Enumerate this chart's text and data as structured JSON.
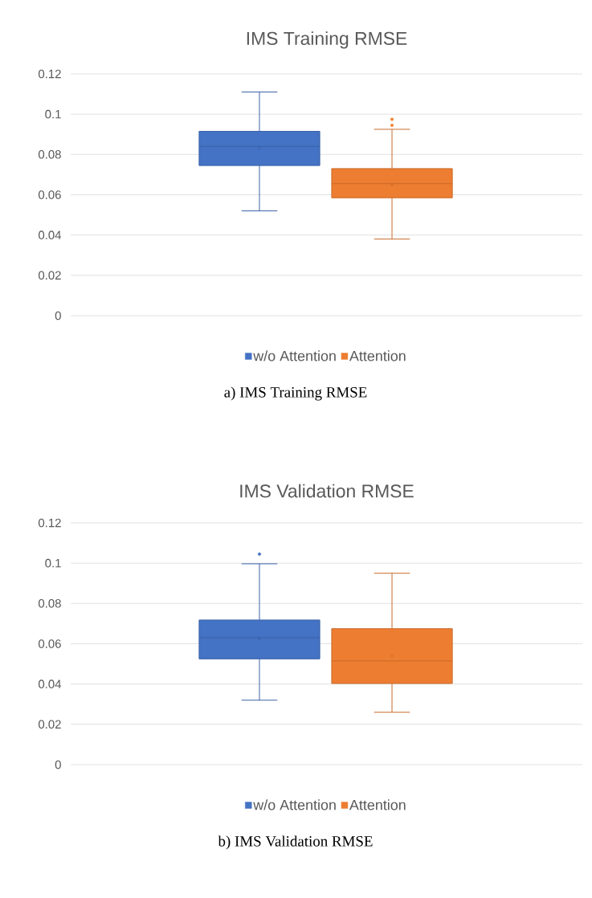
{
  "chart_data": [
    {
      "type": "box",
      "title": "IMS Training RMSE",
      "categories": [
        null
      ],
      "ylim": [
        0,
        0.12
      ],
      "yticks": [
        0,
        0.02,
        0.04,
        0.06,
        0.08,
        0.1,
        0.12
      ],
      "grid": "y",
      "legend": "bottom",
      "tick_labels": "y",
      "series": [
        {
          "name": "w/o Attention",
          "color": "#4472c4",
          "boxes": [
            {
              "low": 0.052,
              "q1": 0.0745,
              "median": 0.084,
              "q3": 0.0915,
              "high": 0.111,
              "mean": 0.083
            }
          ]
        },
        {
          "name": "Attention",
          "color": "#ed7d31",
          "boxes": [
            {
              "low": 0.038,
              "q1": 0.0585,
              "median": 0.0655,
              "q3": 0.073,
              "high": 0.0925,
              "mean": 0.065,
              "outliers": [
                0.0975,
                0.0945
              ]
            }
          ]
        }
      ],
      "annotations": [
        "a) IMS Training RMSE"
      ]
    },
    {
      "type": "box",
      "title": "IMS Validation RMSE",
      "categories": [
        null
      ],
      "ylim": [
        0,
        0.12
      ],
      "yticks": [
        0,
        0.02,
        0.04,
        0.06,
        0.08,
        0.1,
        0.12
      ],
      "grid": "y",
      "legend": "bottom",
      "tick_labels": "y",
      "series": [
        {
          "name": "w/o Attention",
          "color": "#4472c4",
          "boxes": [
            {
              "low": 0.032,
              "q1": 0.0525,
              "median": 0.063,
              "q3": 0.0718,
              "high": 0.0997,
              "mean": 0.0625,
              "outliers": [
                0.1045
              ]
            }
          ]
        },
        {
          "name": "Attention",
          "color": "#ed7d31",
          "boxes": [
            {
              "low": 0.026,
              "q1": 0.0403,
              "median": 0.0515,
              "q3": 0.0675,
              "high": 0.095,
              "mean": 0.054
            }
          ]
        }
      ],
      "annotations": [
        "b) IMS Validation RMSE"
      ]
    }
  ]
}
